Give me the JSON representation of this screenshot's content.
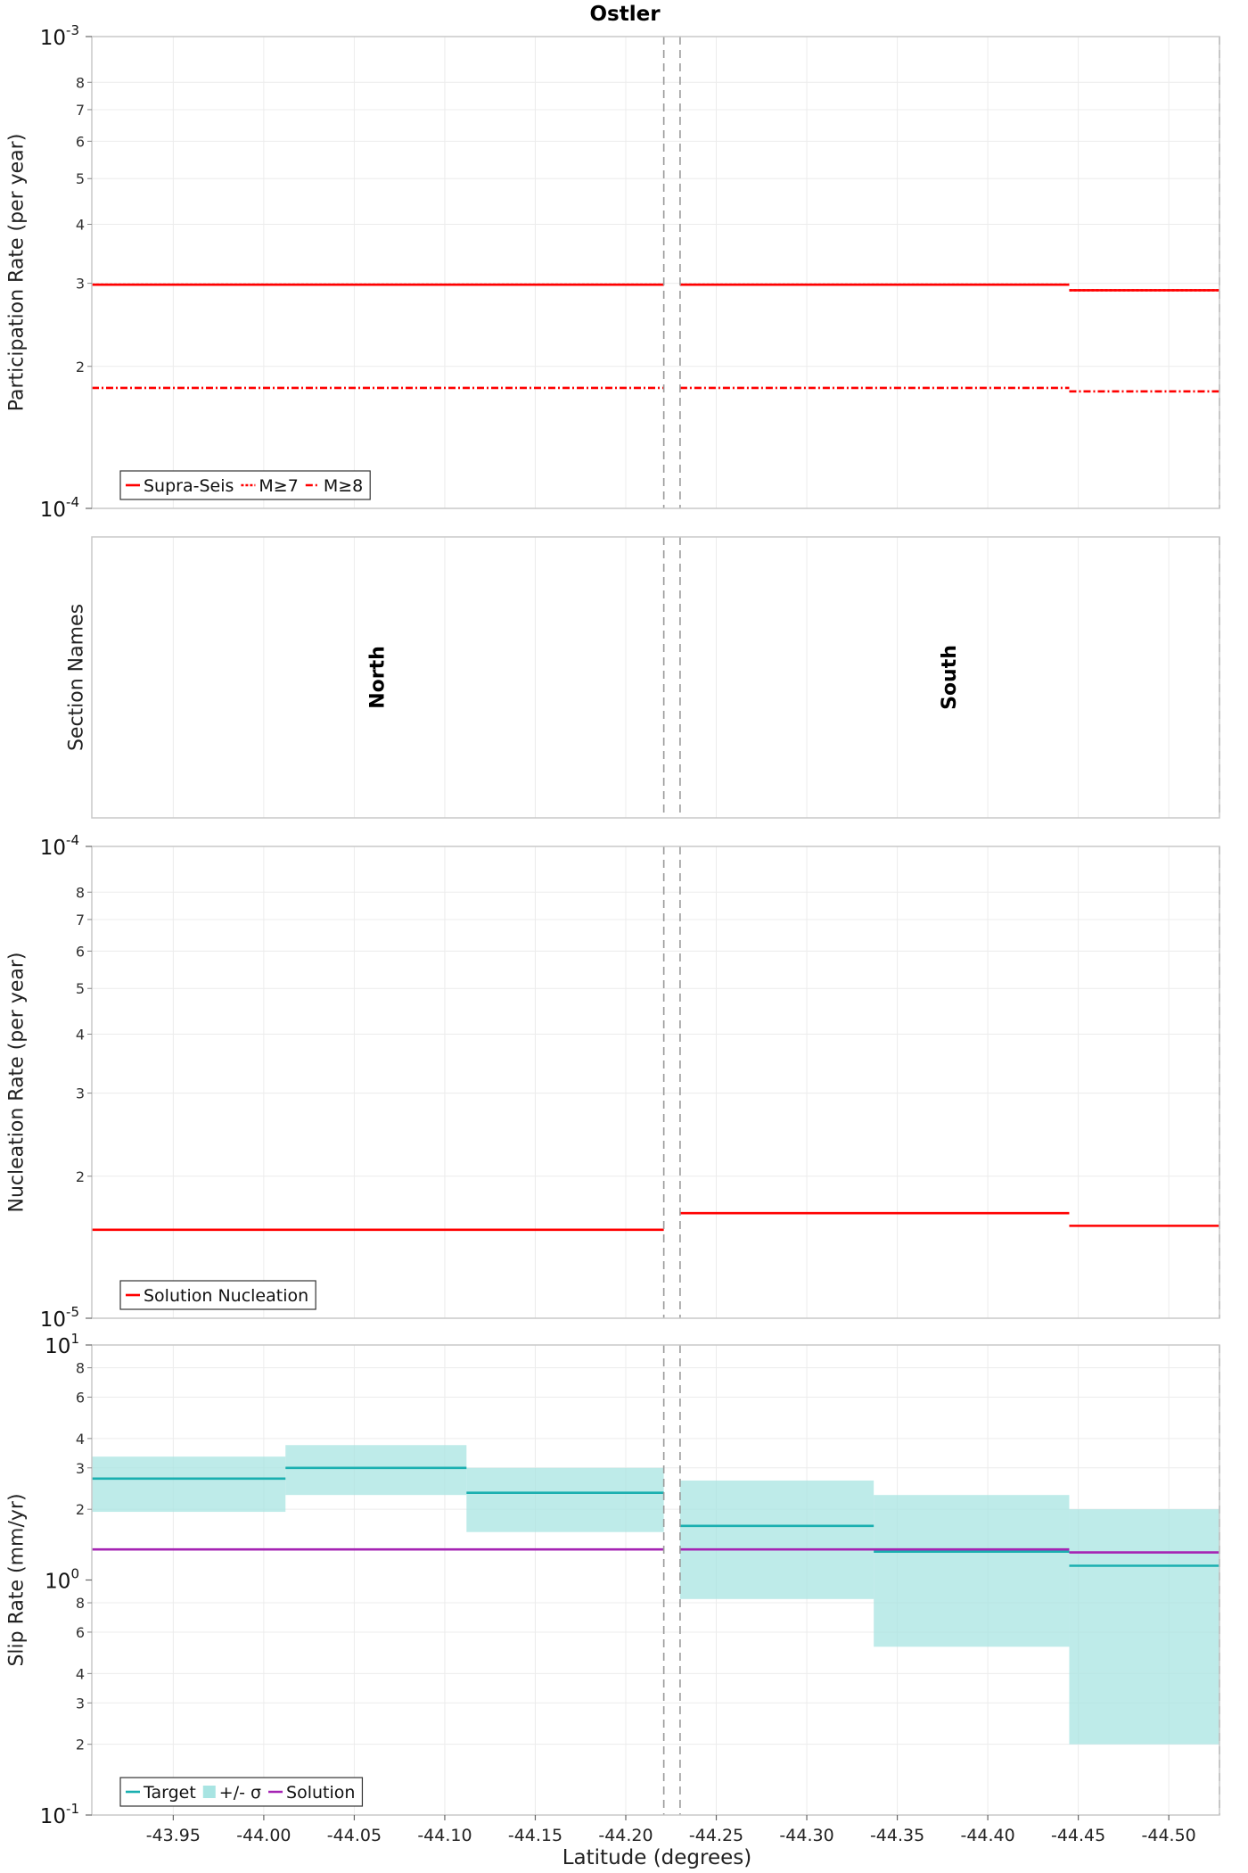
{
  "chart_data": {
    "type": "line",
    "title": "Ostler",
    "xlabel": "Latitude (degrees)",
    "x_ticks": [
      "-43.95",
      "-44.00",
      "-44.05",
      "-44.10",
      "-44.15",
      "-44.20",
      "-44.25",
      "-44.30",
      "-44.35",
      "-44.40",
      "-44.45",
      "-44.50"
    ],
    "xlim": [
      -43.905,
      -44.528
    ],
    "section_boundaries": [
      -44.221,
      -44.23,
      -44.528
    ],
    "panels": [
      {
        "name": "participation",
        "ylabel": "Participation Rate (per year)",
        "scale": "log",
        "ylim": [
          0.0001,
          0.001
        ],
        "y_ticks": [
          {
            "v": 0.001,
            "m": "10",
            "e": "-3"
          },
          {
            "v": 0.0001,
            "m": "10",
            "e": "-4"
          }
        ],
        "y_minor_ticks": [
          {
            "v": 0.0002,
            "label": "2"
          },
          {
            "v": 0.0003,
            "label": "3"
          },
          {
            "v": 0.0004,
            "label": "4"
          },
          {
            "v": 0.0005,
            "label": "5"
          },
          {
            "v": 0.0006,
            "label": "6"
          },
          {
            "v": 0.0007,
            "label": "7"
          },
          {
            "v": 0.0008,
            "label": "8"
          }
        ],
        "legend": {
          "placement": "bottom-left",
          "items": [
            "Supra-Seis",
            "M≥7",
            "M≥8"
          ]
        },
        "series": [
          {
            "name": "Supra-Seis",
            "color": "#ff0000",
            "style": "solid",
            "segments": [
              [
                -43.905,
                -44.221,
                0.000298
              ],
              [
                -44.23,
                -44.445,
                0.000298
              ],
              [
                -44.445,
                -44.528,
                0.00029
              ]
            ]
          },
          {
            "name": "M≥7",
            "color": "#ff0000",
            "style": "dotted",
            "segments": [
              [
                -43.905,
                -44.221,
                0.000298
              ],
              [
                -44.23,
                -44.445,
                0.000298
              ],
              [
                -44.445,
                -44.528,
                0.00029
              ]
            ]
          },
          {
            "name": "M≥8",
            "color": "#ff0000",
            "style": "dashdot",
            "segments": [
              [
                -43.905,
                -44.221,
                0.00018
              ],
              [
                -44.23,
                -44.445,
                0.00018
              ],
              [
                -44.445,
                -44.528,
                0.000177
              ]
            ]
          }
        ]
      },
      {
        "name": "sections",
        "ylabel": "Section Names",
        "scale": "none",
        "sections": [
          {
            "label": "North",
            "x": -44.063
          },
          {
            "label": "South",
            "x": -44.379
          }
        ]
      },
      {
        "name": "nucleation",
        "ylabel": "Nucleation Rate (per year)",
        "scale": "log",
        "ylim": [
          1e-05,
          0.0001
        ],
        "y_ticks": [
          {
            "v": 0.0001,
            "m": "10",
            "e": "-4"
          },
          {
            "v": 1e-05,
            "m": "10",
            "e": "-5"
          }
        ],
        "y_minor_ticks": [
          {
            "v": 2e-05,
            "label": "2"
          },
          {
            "v": 3e-05,
            "label": "3"
          },
          {
            "v": 4e-05,
            "label": "4"
          },
          {
            "v": 5e-05,
            "label": "5"
          },
          {
            "v": 6e-05,
            "label": "6"
          },
          {
            "v": 7e-05,
            "label": "7"
          },
          {
            "v": 8e-05,
            "label": "8"
          }
        ],
        "legend": {
          "placement": "bottom-left",
          "items": [
            "Solution Nucleation"
          ]
        },
        "series": [
          {
            "name": "Solution Nucleation",
            "color": "#ff0000",
            "style": "solid",
            "segments": [
              [
                -43.905,
                -44.221,
                1.54e-05
              ],
              [
                -44.23,
                -44.445,
                1.67e-05
              ],
              [
                -44.445,
                -44.528,
                1.57e-05
              ]
            ]
          }
        ]
      },
      {
        "name": "slip",
        "ylabel": "Slip Rate (mm/yr)",
        "scale": "log",
        "ylim": [
          0.1,
          10
        ],
        "y_ticks": [
          {
            "v": 10,
            "m": "10",
            "e": "1"
          },
          {
            "v": 1,
            "m": "10",
            "e": "0"
          },
          {
            "v": 0.1,
            "m": "10",
            "e": "-1"
          }
        ],
        "y_minor_ticks": [
          {
            "v": 8,
            "label": "8"
          },
          {
            "v": 6,
            "label": "6"
          },
          {
            "v": 4,
            "label": "4"
          },
          {
            "v": 3,
            "label": "3"
          },
          {
            "v": 2,
            "label": "2"
          },
          {
            "v": 0.8,
            "label": "8"
          },
          {
            "v": 0.6,
            "label": "6"
          },
          {
            "v": 0.4,
            "label": "4"
          },
          {
            "v": 0.3,
            "label": "3"
          },
          {
            "v": 0.2,
            "label": "2"
          }
        ],
        "legend": {
          "placement": "bottom-left",
          "items": [
            "Target",
            "+/- σ",
            "Solution"
          ]
        },
        "bands": {
          "name": "+/- σ",
          "color": "#a8e4e2",
          "segments": [
            [
              -43.905,
              -44.012,
              1.95,
              3.35
            ],
            [
              -44.012,
              -44.112,
              2.3,
              3.75
            ],
            [
              -44.112,
              -44.221,
              1.6,
              3.0
            ],
            [
              -44.23,
              -44.337,
              0.83,
              2.65
            ],
            [
              -44.337,
              -44.445,
              0.52,
              2.3
            ],
            [
              -44.445,
              -44.528,
              0.2,
              2.0
            ]
          ]
        },
        "series": [
          {
            "name": "Target",
            "color": "#1aafb0",
            "style": "solid",
            "segments": [
              [
                -43.905,
                -44.012,
                2.7
              ],
              [
                -44.012,
                -44.112,
                3.0
              ],
              [
                -44.112,
                -44.221,
                2.35
              ],
              [
                -44.23,
                -44.337,
                1.7
              ],
              [
                -44.337,
                -44.445,
                1.32
              ],
              [
                -44.445,
                -44.528,
                1.15
              ]
            ]
          },
          {
            "name": "Solution",
            "color": "#a524b3",
            "style": "solid",
            "segments": [
              [
                -43.905,
                -44.221,
                1.35
              ],
              [
                -44.23,
                -44.445,
                1.35
              ],
              [
                -44.445,
                -44.528,
                1.31
              ]
            ]
          }
        ]
      }
    ]
  }
}
